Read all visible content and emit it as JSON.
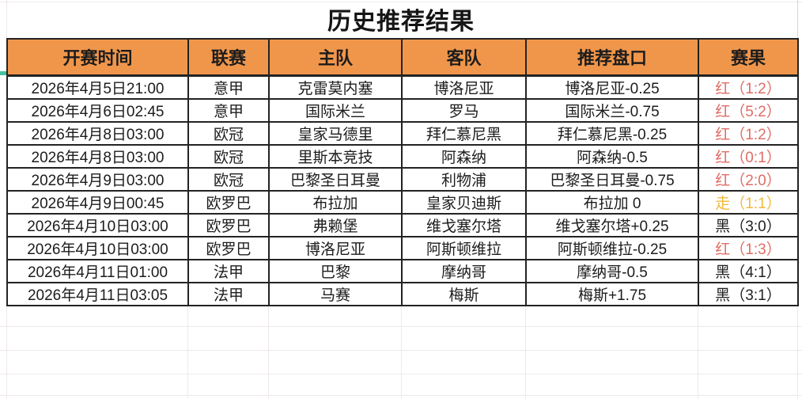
{
  "title": "历史推荐结果",
  "columns": [
    {
      "key": "time",
      "label": "开赛时间"
    },
    {
      "key": "league",
      "label": "联赛"
    },
    {
      "key": "home",
      "label": "主队"
    },
    {
      "key": "away",
      "label": "客队"
    },
    {
      "key": "handicap",
      "label": "推荐盘口"
    },
    {
      "key": "result",
      "label": "赛果"
    }
  ],
  "rows": [
    {
      "time": "2026年4月5日21:00",
      "league": "意甲",
      "home": "克雷莫内塞",
      "away": "博洛尼亚",
      "handicap": "博洛尼亚-0.25",
      "result": "红（1:2）",
      "result_color": "red"
    },
    {
      "time": "2026年4月6日02:45",
      "league": "意甲",
      "home": "国际米兰",
      "away": "罗马",
      "handicap": "国际米兰-0.75",
      "result": "红（5:2）",
      "result_color": "red"
    },
    {
      "time": "2026年4月8日03:00",
      "league": "欧冠",
      "home": "皇家马德里",
      "away": "拜仁慕尼黑",
      "handicap": "拜仁慕尼黑-0.25",
      "result": "红（1:2）",
      "result_color": "red"
    },
    {
      "time": "2026年4月8日03:00",
      "league": "欧冠",
      "home": "里斯本竞技",
      "away": "阿森纳",
      "handicap": "阿森纳-0.5",
      "result": "红（0:1）",
      "result_color": "red"
    },
    {
      "time": "2026年4月9日03:00",
      "league": "欧冠",
      "home": "巴黎圣日耳曼",
      "away": "利物浦",
      "handicap": "巴黎圣日耳曼-0.75",
      "result": "红（2:0）",
      "result_color": "red"
    },
    {
      "time": "2026年4月9日00:45",
      "league": "欧罗巴",
      "home": "布拉加",
      "away": "皇家贝迪斯",
      "handicap": "布拉加 0",
      "result": "走（1:1）",
      "result_color": "gold"
    },
    {
      "time": "2026年4月10日03:00",
      "league": "欧罗巴",
      "home": "弗赖堡",
      "away": "维戈塞尔塔",
      "handicap": "维戈塞尔塔+0.25",
      "result": "黑（3:0）",
      "result_color": "black"
    },
    {
      "time": "2026年4月10日03:00",
      "league": "欧罗巴",
      "home": "博洛尼亚",
      "away": "阿斯顿维拉",
      "handicap": "阿斯顿维拉-0.25",
      "result": "红（1:3）",
      "result_color": "red"
    },
    {
      "time": "2026年4月11日01:00",
      "league": "法甲",
      "home": "巴黎",
      "away": "摩纳哥",
      "handicap": "摩纳哥-0.5",
      "result": "黑（4:1）",
      "result_color": "black"
    },
    {
      "time": "2026年4月11日03:05",
      "league": "法甲",
      "home": "马赛",
      "away": "梅斯",
      "handicap": "梅斯+1.75",
      "result": "黑（3:1）",
      "result_color": "black"
    }
  ],
  "colors": {
    "header_bg": "#F0964B",
    "red": "#E06C65",
    "gold": "#F0B93C",
    "black": "#212121",
    "border": "#232323",
    "accent_tick": "#44C2A4"
  }
}
